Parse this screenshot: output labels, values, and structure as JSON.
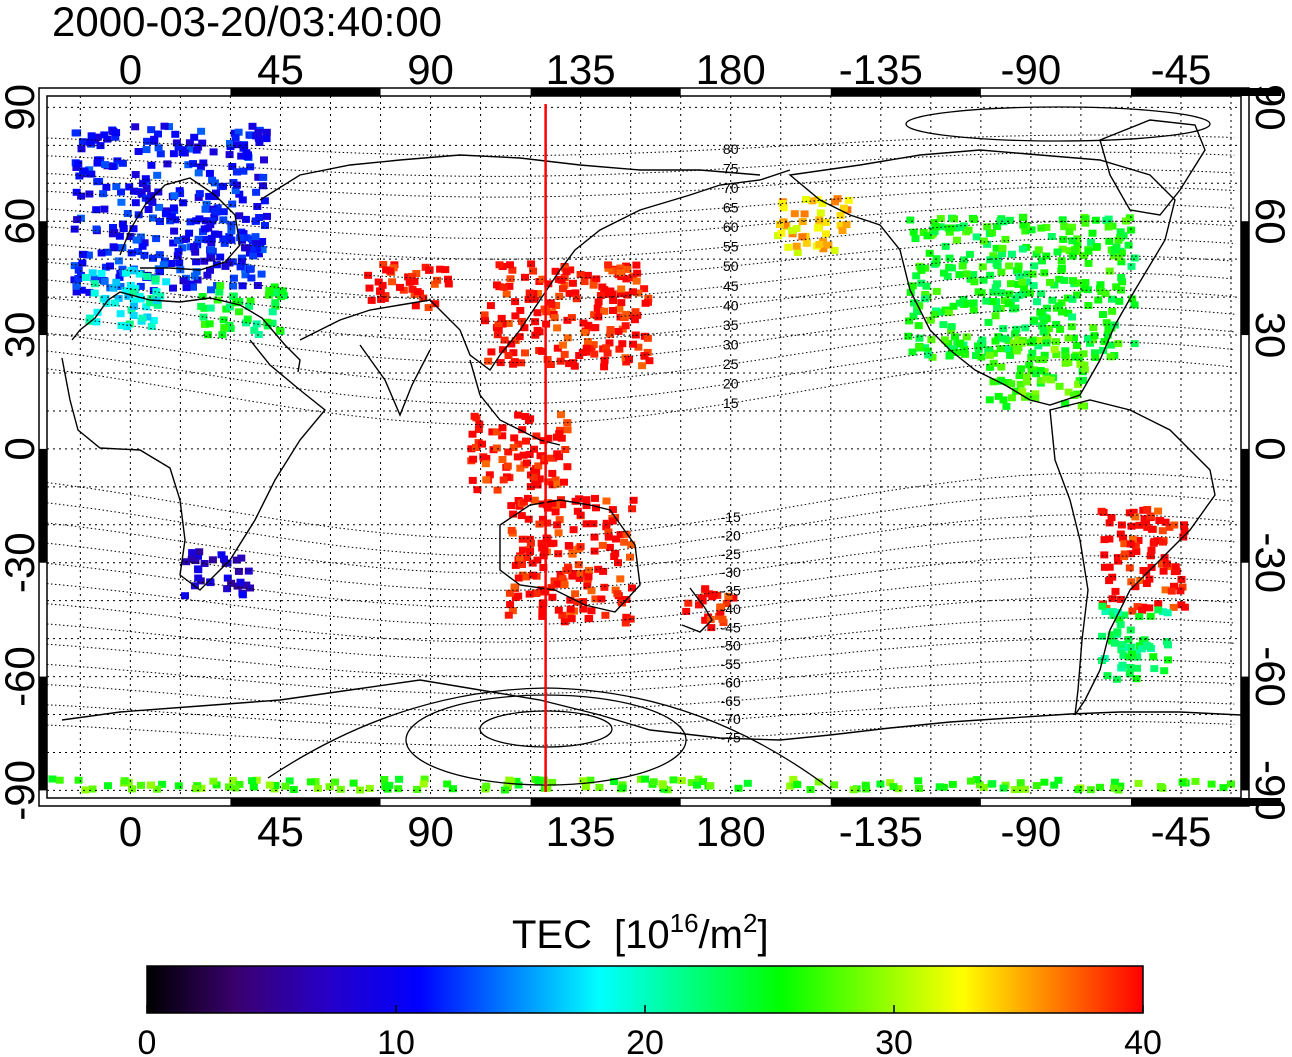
{
  "title": "2000-03-20/03:40:00",
  "map": {
    "lon_ticks": [
      "0",
      "45",
      "90",
      "135",
      "180",
      "-135",
      "-90",
      "-45"
    ],
    "lon_tick_values": [
      0,
      45,
      90,
      135,
      180,
      225,
      270,
      315
    ],
    "lat_ticks": [
      "90",
      "60",
      "30",
      "0",
      "-30",
      "-60",
      "-90"
    ],
    "lat_tick_values": [
      90,
      60,
      30,
      0,
      -30,
      -60,
      -90
    ],
    "lon_range": [
      -25,
      333
    ],
    "lat_range": [
      -92,
      93
    ],
    "grid": "dotted",
    "meridian_marker_lon": 124.5,
    "meridian_marker_color": "#ff0000",
    "contour_labels": [
      "80",
      "75",
      "70",
      "65",
      "60",
      "55",
      "50",
      "45",
      "40",
      "35",
      "30",
      "25",
      "20",
      "15",
      "-15",
      "-20",
      "-25",
      "-30",
      "-35",
      "-40",
      "-45",
      "-50",
      "-55",
      "-60",
      "-65",
      "-70",
      "-75"
    ],
    "contour_label_values": [
      80,
      75,
      70,
      65,
      60,
      55,
      50,
      45,
      40,
      35,
      30,
      25,
      20,
      15,
      -15,
      -20,
      -25,
      -30,
      -35,
      -40,
      -45,
      -50,
      -55,
      -60,
      -65,
      -70,
      -75
    ]
  },
  "colorbar": {
    "label": "TEC",
    "unit": "[10^16/m^2]",
    "unit_base": "[10",
    "unit_exp": "16",
    "unit_mid": "/m",
    "unit_exp2": "2",
    "unit_end": "]",
    "min": 0,
    "max": 40,
    "ticks": [
      "0",
      "10",
      "20",
      "30",
      "40"
    ],
    "tick_values": [
      0,
      10,
      20,
      30,
      40
    ],
    "colormap": [
      "#000000",
      "#3a0070",
      "#2600c8",
      "#0000ff",
      "#0080ff",
      "#00ffff",
      "#00ff80",
      "#00ff00",
      "#80ff00",
      "#ffff00",
      "#ff8000",
      "#ff0000"
    ]
  },
  "chart_data": {
    "type": "heatmap",
    "title": "2000-03-20/03:40:00",
    "value_label": "TEC [10^16/m^2]",
    "vmin": 0,
    "vmax": 40,
    "regions": [
      {
        "lon": [
          -18,
          40
        ],
        "lat": [
          42,
          86
        ],
        "tec": 11
      },
      {
        "lon": [
          -15,
          10
        ],
        "lat": [
          33,
          48
        ],
        "tec": 19
      },
      {
        "lon": [
          20,
          45
        ],
        "lat": [
          30,
          44
        ],
        "tec": 24
      },
      {
        "lon": [
          15,
          35
        ],
        "lat": [
          -38,
          -26
        ],
        "tec": 8
      },
      {
        "lon": [
          105,
          155
        ],
        "lat": [
          22,
          50
        ],
        "tec": 40
      },
      {
        "lon": [
          70,
          95
        ],
        "lat": [
          38,
          50
        ],
        "tec": 40
      },
      {
        "lon": [
          100,
          130
        ],
        "lat": [
          -10,
          10
        ],
        "tec": 40
      },
      {
        "lon": [
          112,
          150
        ],
        "lat": [
          -45,
          -12
        ],
        "tec": 40
      },
      {
        "lon": [
          165,
          180
        ],
        "lat": [
          -47,
          -35
        ],
        "tec": 40
      },
      {
        "lon": [
          193,
          215
        ],
        "lat": [
          52,
          67
        ],
        "tec": 34
      },
      {
        "lon": [
          232,
          300
        ],
        "lat": [
          25,
          62
        ],
        "tec": 25
      },
      {
        "lon": [
          255,
          285
        ],
        "lat": [
          12,
          30
        ],
        "tec": 27
      },
      {
        "lon": [
          290,
          315
        ],
        "lat": [
          -42,
          -15
        ],
        "tec": 40
      },
      {
        "lon": [
          290,
          310
        ],
        "lat": [
          -60,
          -40
        ],
        "tec": 23
      },
      {
        "lon": [
          -25,
          333
        ],
        "lat": [
          -89,
          -86
        ],
        "tec": 27
      }
    ]
  }
}
